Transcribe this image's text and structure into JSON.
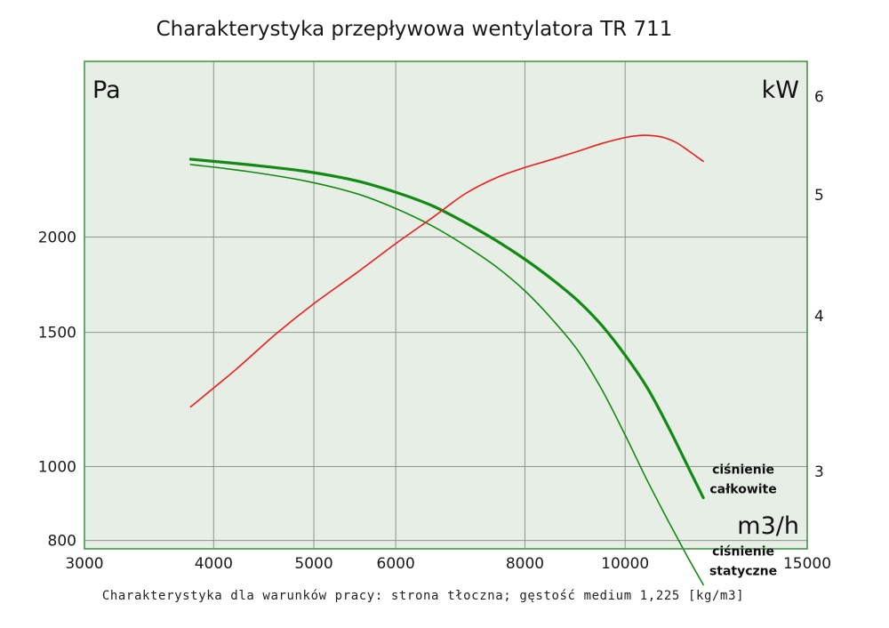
{
  "chart_data": {
    "type": "line",
    "title": "Charakterystyka przepływowa wentylatora TR 711",
    "caption": "Charakterystyka dla warunków pracy: strona tłoczna; gęstość medium 1,225 [kg/m3]",
    "x_scale": "log",
    "y_scale": "log",
    "xlim": [
      3000,
      15000
    ],
    "ylim": [
      780,
      3400
    ],
    "y2lim": [
      2.6,
      6.4
    ],
    "x_ticks": [
      3000,
      4000,
      5000,
      6000,
      8000,
      10000,
      15000
    ],
    "x_tick_labels": [
      "3000",
      "4000",
      "5000",
      "6000",
      "8000",
      "10000",
      "15000"
    ],
    "y_ticks": [
      800,
      1000,
      1500,
      2000
    ],
    "y_tick_labels": [
      "800",
      "1000",
      "1500",
      "2000"
    ],
    "y2_ticks": [
      3,
      4,
      5,
      6
    ],
    "y2_tick_labels": [
      "3",
      "4",
      "5",
      "6"
    ],
    "y_unit": "Pa",
    "y2_unit": "kW",
    "x_unit": "m3/h",
    "grid": true,
    "colors": {
      "background": "#e6eee6",
      "frame": "#3f8f3f",
      "grid": "#8d978d",
      "pressure": "#138a13",
      "power": "#ee1c1c"
    },
    "series": [
      {
        "name": "ciśnienie całkowite",
        "axis": "left",
        "label_lines": [
          "ciśnienie",
          "całkowite"
        ],
        "width": 3.2,
        "x": [
          3800,
          4300,
          4900,
          5500,
          6000,
          6500,
          7000,
          7500,
          8000,
          8500,
          9000,
          9500,
          10000,
          10500,
          11000,
          11500,
          11900
        ],
        "y": [
          2530,
          2490,
          2440,
          2370,
          2290,
          2200,
          2090,
          1980,
          1870,
          1760,
          1650,
          1530,
          1400,
          1270,
          1130,
          1000,
          910
        ]
      },
      {
        "name": "ciśnienie statyczne",
        "axis": "left",
        "label_lines": [
          "ciśnienie",
          "statyczne"
        ],
        "width": 1.6,
        "x": [
          3800,
          4300,
          4900,
          5500,
          6000,
          6500,
          7000,
          7500,
          8000,
          8500,
          9000,
          9500,
          10000,
          10500,
          11000,
          11500,
          11900
        ],
        "y": [
          2490,
          2440,
          2370,
          2280,
          2180,
          2070,
          1950,
          1830,
          1700,
          1560,
          1420,
          1260,
          1100,
          960,
          850,
          760,
          700
        ]
      },
      {
        "name": "",
        "axis": "right",
        "width": 1.6,
        "x": [
          3800,
          4200,
          4600,
          5000,
          5500,
          6000,
          6500,
          7000,
          7500,
          8000,
          8500,
          9000,
          9500,
          10000,
          10300,
          10600,
          10900,
          11200,
          11500,
          11900
        ],
        "y": [
          3.38,
          3.62,
          3.87,
          4.09,
          4.33,
          4.57,
          4.79,
          5.01,
          5.16,
          5.26,
          5.34,
          5.42,
          5.5,
          5.56,
          5.58,
          5.58,
          5.56,
          5.51,
          5.43,
          5.32
        ]
      }
    ]
  }
}
